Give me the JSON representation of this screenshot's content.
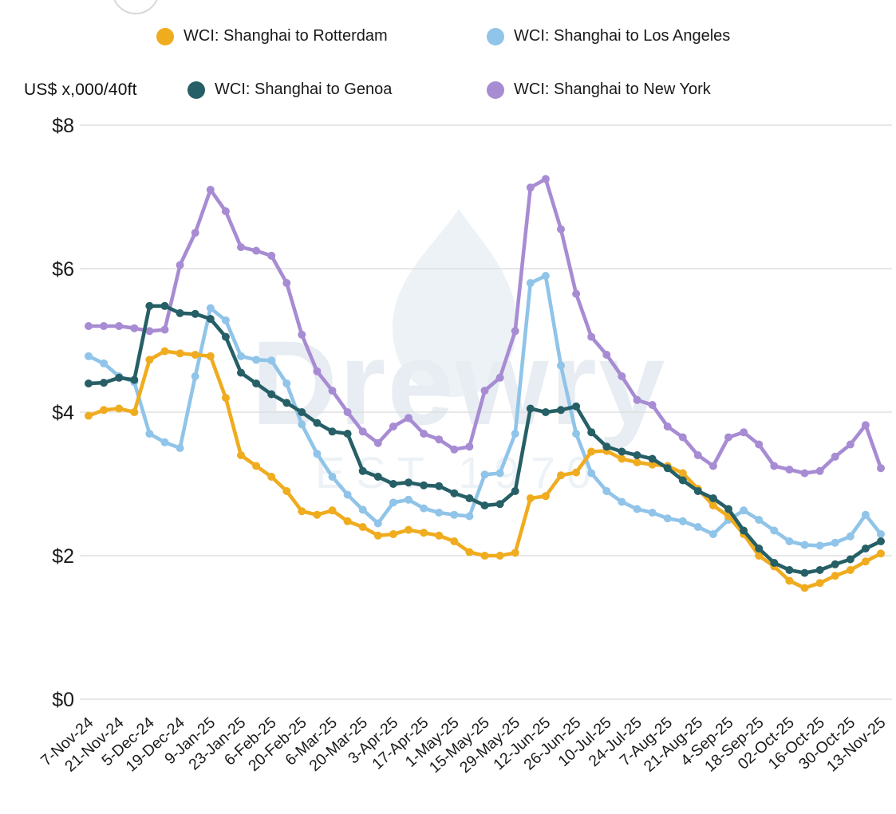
{
  "y_axis": {
    "unit_label": "US$ x,000/40ft",
    "ticks": [
      "$8",
      "$6",
      "$4",
      "$2",
      "$0"
    ],
    "tick_values": [
      8,
      6,
      4,
      2,
      0
    ]
  },
  "watermark": {
    "line1": "Drewry",
    "line2": "EST 1970",
    "color_main": "#e7edf2",
    "color_sub": "#edf2f6"
  },
  "colors": {
    "gridline": "#dbdbdb",
    "axis_text": "#1a1a1a",
    "background": "#ffffff"
  },
  "chart_data": {
    "type": "line",
    "title": "",
    "xlabel": "",
    "ylabel": "US$ x,000/40ft",
    "ylim": [
      0,
      8
    ],
    "grid": true,
    "legend_position": "top",
    "markers": true,
    "points_per_label": 2,
    "x_tick_labels": [
      "7-Nov-24",
      "21-Nov-24",
      "5-Dec-24",
      "19-Dec-24",
      "9-Jan-25",
      "23-Jan-25",
      "6-Feb-25",
      "20-Feb-25",
      "6-Mar-25",
      "20-Mar-25",
      "3-Apr-25",
      "17-Apr-25",
      "1-May-25",
      "15-May-25",
      "29-May-25",
      "12-Jun-25",
      "26-Jun-25",
      "10-Jul-25",
      "24-Jul-25",
      "7-Aug-25",
      "21-Aug-25",
      "4-Sep-25",
      "18-Sep-25",
      "02-Oct-25",
      "16-Oct-25",
      "30-Oct-25",
      "13-Nov-25"
    ],
    "series": [
      {
        "name": "WCI: Shanghai to Rotterdam",
        "color": "#f0ac1f",
        "values": [
          3.95,
          4.03,
          4.05,
          4.0,
          4.73,
          4.85,
          4.82,
          4.8,
          4.78,
          4.2,
          3.4,
          3.25,
          3.1,
          2.9,
          2.62,
          2.57,
          2.63,
          2.48,
          2.4,
          2.28,
          2.3,
          2.36,
          2.32,
          2.28,
          2.2,
          2.05,
          2.0,
          2.0,
          2.04,
          2.8,
          2.83,
          3.12,
          3.16,
          3.45,
          3.46,
          3.35,
          3.3,
          3.27,
          3.25,
          3.15,
          2.93,
          2.7,
          2.55,
          2.3,
          2.0,
          1.85,
          1.65,
          1.55,
          1.62,
          1.72,
          1.8,
          1.92,
          2.03
        ]
      },
      {
        "name": "WCI: Shanghai to Los Angeles",
        "color": "#90c4e9",
        "values": [
          4.78,
          4.68,
          4.5,
          4.42,
          3.7,
          3.58,
          3.5,
          4.5,
          5.45,
          5.28,
          4.78,
          4.73,
          4.72,
          4.4,
          3.83,
          3.42,
          3.1,
          2.85,
          2.64,
          2.45,
          2.74,
          2.78,
          2.66,
          2.6,
          2.57,
          2.55,
          3.13,
          3.15,
          3.7,
          5.8,
          5.9,
          4.65,
          3.7,
          3.15,
          2.9,
          2.75,
          2.65,
          2.6,
          2.52,
          2.48,
          2.4,
          2.3,
          2.5,
          2.63,
          2.5,
          2.35,
          2.2,
          2.15,
          2.14,
          2.18,
          2.27,
          2.57,
          2.3
        ]
      },
      {
        "name": "WCI: Shanghai to Genoa",
        "color": "#265f66",
        "values": [
          4.4,
          4.41,
          4.48,
          4.45,
          5.48,
          5.48,
          5.38,
          5.37,
          5.3,
          5.05,
          4.55,
          4.4,
          4.25,
          4.13,
          4.0,
          3.85,
          3.73,
          3.7,
          3.18,
          3.1,
          3.0,
          3.02,
          2.98,
          2.97,
          2.87,
          2.8,
          2.7,
          2.72,
          2.9,
          4.05,
          4.0,
          4.03,
          4.08,
          3.72,
          3.52,
          3.45,
          3.4,
          3.35,
          3.22,
          3.05,
          2.9,
          2.8,
          2.65,
          2.35,
          2.1,
          1.9,
          1.8,
          1.76,
          1.8,
          1.88,
          1.95,
          2.1,
          2.2
        ]
      },
      {
        "name": "WCI: Shanghai to New York",
        "color": "#a78cd3",
        "values": [
          5.2,
          5.2,
          5.2,
          5.17,
          5.13,
          5.15,
          6.05,
          6.5,
          7.1,
          6.8,
          6.3,
          6.25,
          6.18,
          5.8,
          5.08,
          4.57,
          4.3,
          4.0,
          3.73,
          3.57,
          3.8,
          3.92,
          3.7,
          3.62,
          3.48,
          3.52,
          4.3,
          4.48,
          5.13,
          7.13,
          7.25,
          6.55,
          5.65,
          5.05,
          4.8,
          4.5,
          4.17,
          4.1,
          3.8,
          3.65,
          3.4,
          3.25,
          3.65,
          3.72,
          3.55,
          3.25,
          3.2,
          3.15,
          3.18,
          3.38,
          3.55,
          3.82,
          3.22
        ]
      }
    ]
  }
}
